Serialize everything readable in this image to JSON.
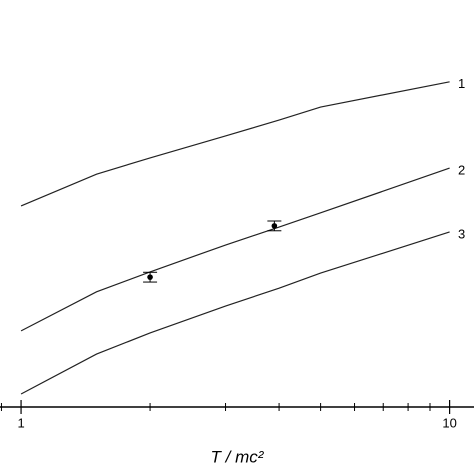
{
  "chart_data": {
    "type": "line",
    "xlabel": "T / mc²",
    "x": [
      1,
      1.5,
      2,
      3,
      4,
      5,
      10
    ],
    "xscale": "log",
    "xlim": [
      0.893,
      11.4
    ],
    "xticks": [
      1,
      10
    ],
    "xminorticks": [
      0.9,
      2,
      3,
      4,
      5,
      6,
      7,
      8,
      9
    ],
    "ylim": [
      0,
      100
    ],
    "series": [
      {
        "name": "1",
        "color": "#222222",
        "values": [
          49.4,
          57.2,
          61.2,
          66.6,
          70.5,
          73.7,
          79.9
        ]
      },
      {
        "name": "2",
        "color": "#222222",
        "values": [
          18.7,
          28.3,
          33.2,
          39.8,
          44.2,
          47.7,
          58.7
        ]
      },
      {
        "name": "3",
        "color": "#222222",
        "values": [
          3.2,
          13.0,
          18.2,
          24.8,
          29.2,
          32.9,
          43.0
        ]
      }
    ],
    "points": {
      "x": [
        2.0,
        3.9
      ],
      "values": [
        31.9,
        44.5
      ],
      "errors": [
        1.2,
        1.2
      ],
      "color": "#000000"
    }
  }
}
